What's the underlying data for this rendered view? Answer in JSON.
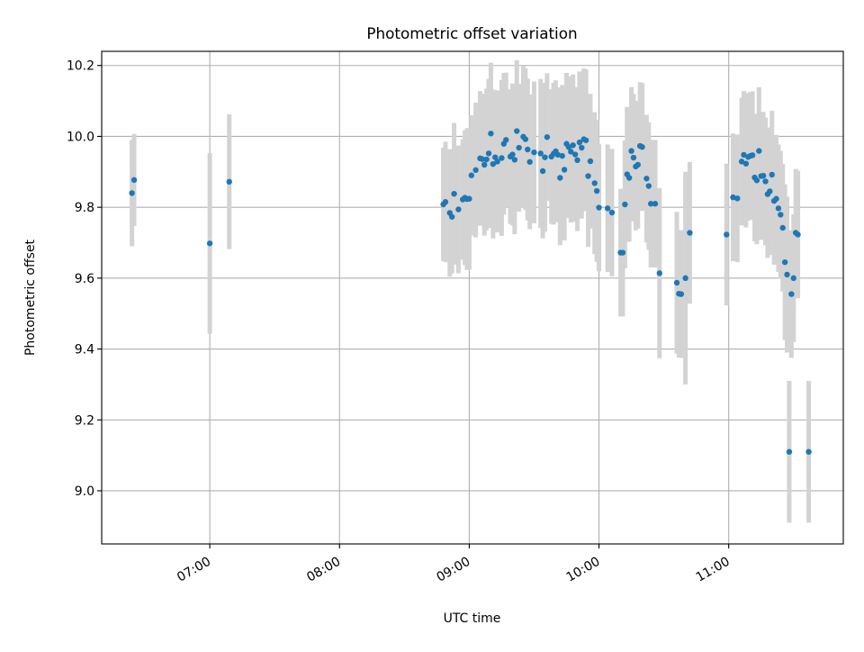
{
  "chart_data": {
    "type": "scatter",
    "title": "Photometric offset variation",
    "xlabel": "UTC time",
    "ylabel": "Photometric offset",
    "x_scale": "time",
    "xlim": [
      "06:10",
      "11:53"
    ],
    "ylim": [
      8.85,
      10.24
    ],
    "xticks": [
      "07:00",
      "08:00",
      "09:00",
      "10:00",
      "11:00"
    ],
    "yticks": [
      "9.0",
      "9.2",
      "9.4",
      "9.6",
      "9.8",
      "10.0",
      "10.2"
    ],
    "grid": true,
    "marker_color": "#1f77b4",
    "errorbar_color": "#d3d3d3",
    "series": [
      {
        "x": [
          "06:24",
          "06:25",
          "07:00",
          "07:09",
          "08:48",
          "08:49",
          "08:51",
          "08:52",
          "08:53",
          "08:55",
          "08:57",
          "08:58",
          "08:59",
          "09:00",
          "09:01",
          "09:03",
          "09:05",
          "09:06",
          "09:07",
          "09:08",
          "09:09",
          "09:10",
          "09:11",
          "09:12",
          "09:13",
          "09:15",
          "09:16",
          "09:17",
          "09:19",
          "09:20",
          "09:21",
          "09:22",
          "09:23",
          "09:25",
          "09:26",
          "09:27",
          "09:28",
          "09:30",
          "09:33",
          "09:34",
          "09:35",
          "09:36",
          "09:38",
          "09:39",
          "09:40",
          "09:41",
          "09:42",
          "09:43",
          "09:44",
          "09:45",
          "09:46",
          "09:47",
          "09:48",
          "09:49",
          "09:50",
          "09:51",
          "09:52",
          "09:53",
          "09:54",
          "09:55",
          "09:56",
          "09:58",
          "09:59",
          "10:00",
          "10:04",
          "10:06",
          "10:10",
          "10:11",
          "10:12",
          "10:13",
          "10:14",
          "10:15",
          "10:16",
          "10:17",
          "10:18",
          "10:19",
          "10:20",
          "10:22",
          "10:23",
          "10:24",
          "10:26",
          "10:28",
          "10:36",
          "10:37",
          "10:38",
          "10:40",
          "10:42",
          "10:59",
          "11:02",
          "11:04",
          "11:06",
          "11:07",
          "11:08",
          "11:09",
          "11:10",
          "11:11",
          "11:12",
          "11:13",
          "11:14",
          "11:15",
          "11:16",
          "11:17",
          "11:18",
          "11:19",
          "11:20",
          "11:21",
          "11:22",
          "11:23",
          "11:24",
          "11:25",
          "11:26",
          "11:27",
          "11:28",
          "11:29",
          "11:30",
          "11:31",
          "11:32",
          "11:37"
        ],
        "y": [
          9.84,
          9.877,
          9.698,
          9.872,
          9.808,
          9.815,
          9.784,
          9.773,
          9.838,
          9.794,
          9.822,
          9.827,
          9.823,
          9.824,
          9.89,
          9.905,
          9.938,
          9.936,
          9.92,
          9.935,
          9.952,
          10.008,
          9.922,
          9.941,
          9.929,
          9.939,
          9.979,
          9.99,
          9.943,
          9.949,
          9.934,
          10.015,
          9.968,
          9.999,
          9.992,
          9.963,
          9.928,
          9.955,
          9.952,
          9.902,
          9.941,
          9.998,
          9.943,
          9.951,
          9.958,
          9.948,
          9.883,
          9.945,
          9.906,
          9.979,
          9.97,
          9.957,
          9.975,
          9.949,
          9.933,
          9.983,
          9.968,
          9.992,
          9.989,
          9.888,
          9.93,
          9.868,
          9.846,
          9.799,
          9.797,
          9.785,
          9.672,
          9.672,
          9.808,
          9.893,
          9.883,
          9.959,
          9.94,
          9.915,
          9.92,
          9.973,
          9.97,
          9.881,
          9.86,
          9.81,
          9.81,
          9.614,
          9.587,
          9.556,
          9.555,
          9.6,
          9.728,
          9.723,
          9.828,
          9.825,
          9.929,
          9.948,
          9.923,
          9.942,
          9.945,
          9.947,
          9.884,
          9.876,
          9.959,
          9.888,
          9.889,
          9.873,
          9.837,
          9.845,
          9.892,
          9.818,
          9.824,
          9.797,
          9.779,
          9.742,
          9.645,
          9.61,
          9.11,
          9.555,
          9.6,
          9.728,
          9.723,
          9.11
        ],
        "yerr": [
          0.15,
          0.13,
          0.255,
          0.19,
          0.16,
          0.17,
          0.18,
          0.16,
          0.2,
          0.18,
          0.17,
          0.19,
          0.2,
          0.2,
          0.17,
          0.19,
          0.19,
          0.18,
          0.2,
          0.2,
          0.21,
          0.2,
          0.21,
          0.19,
          0.2,
          0.22,
          0.2,
          0.19,
          0.19,
          0.2,
          0.21,
          0.2,
          0.18,
          0.2,
          0.2,
          0.2,
          0.19,
          0.2,
          0.21,
          0.19,
          0.21,
          0.18,
          0.19,
          0.2,
          0.2,
          0.19,
          0.19,
          0.2,
          0.2,
          0.2,
          0.2,
          0.2,
          0.2,
          0.19,
          0.2,
          0.2,
          0.2,
          0.2,
          0.2,
          0.2,
          0.19,
          0.2,
          0.2,
          0.18,
          0.18,
          0.18,
          0.18,
          0.18,
          0.18,
          0.19,
          0.18,
          0.18,
          0.18,
          0.18,
          0.18,
          0.18,
          0.18,
          0.18,
          0.18,
          0.18,
          0.18,
          0.24,
          0.2,
          0.18,
          0.18,
          0.3,
          0.2,
          0.2,
          0.18,
          0.18,
          0.18,
          0.18,
          0.18,
          0.18,
          0.18,
          0.18,
          0.18,
          0.18,
          0.18,
          0.18,
          0.18,
          0.18,
          0.18,
          0.18,
          0.18,
          0.18,
          0.18,
          0.18,
          0.18,
          0.18,
          0.22,
          0.22,
          0.2,
          0.18,
          0.18,
          0.18,
          0.18,
          0.2
        ]
      }
    ]
  }
}
